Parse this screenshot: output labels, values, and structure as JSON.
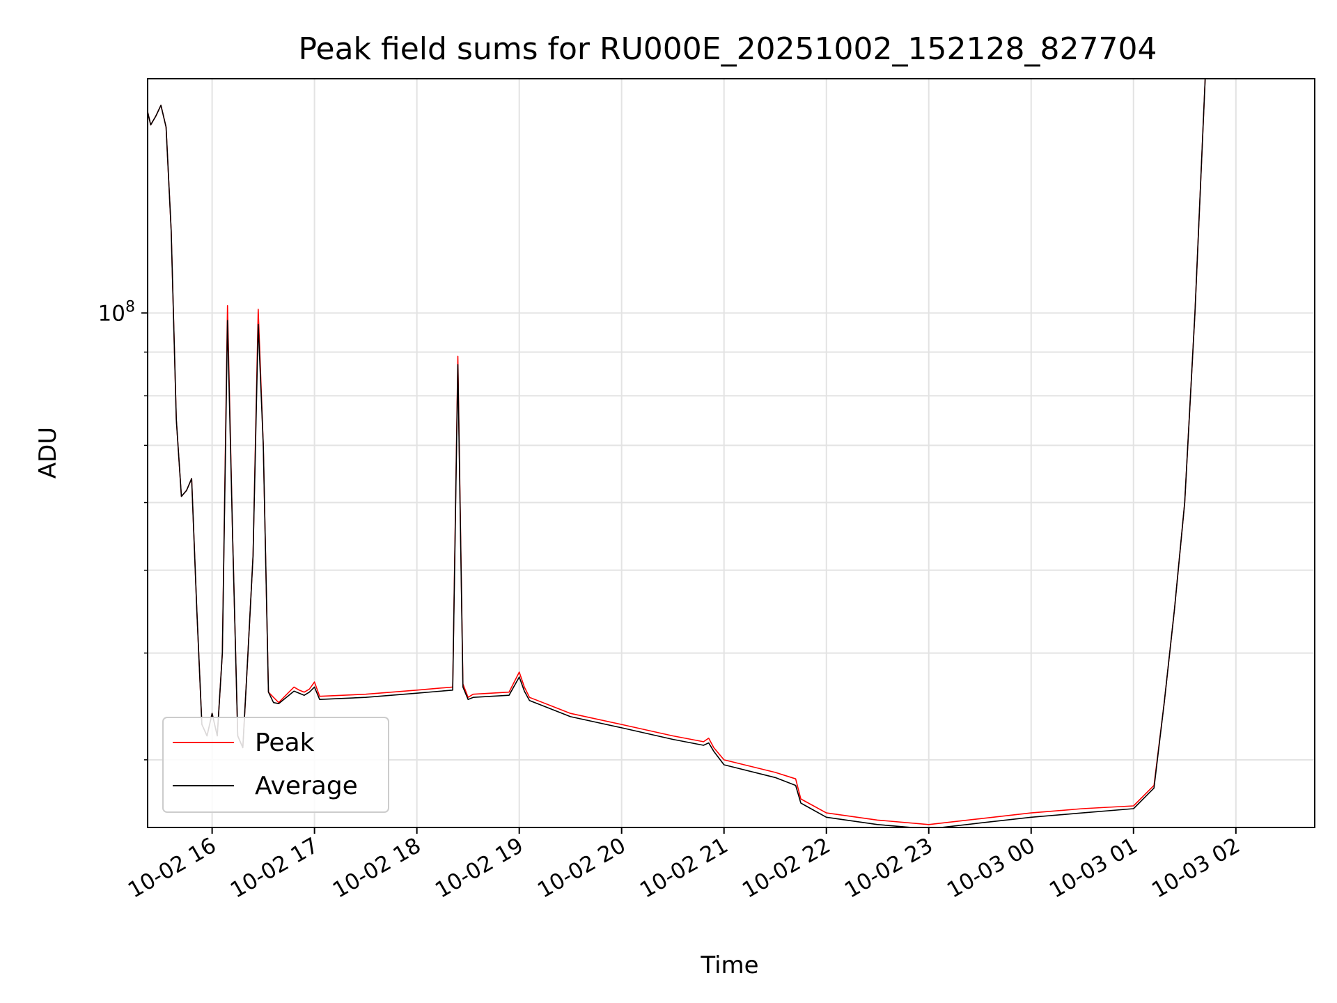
{
  "chart_data": {
    "type": "line",
    "title": "Peak field sums for RU000E_20251002_152128_827704",
    "xlabel": "Time",
    "ylabel": "ADU",
    "yscale": "log",
    "ylim": [
      25000000,
      188000000
    ],
    "y_major_ticks": [
      {
        "value": 100000000,
        "base": "10",
        "exp": "8"
      }
    ],
    "y_minor_ticks": [
      30000000,
      40000000,
      50000000,
      60000000,
      70000000,
      80000000,
      90000000
    ],
    "xlim_hours": [
      -0.63,
      10.77
    ],
    "x_ticks": [
      {
        "hour": 0,
        "label": "10-02 16"
      },
      {
        "hour": 1,
        "label": "10-02 17"
      },
      {
        "hour": 2,
        "label": "10-02 18"
      },
      {
        "hour": 3,
        "label": "10-02 19"
      },
      {
        "hour": 4,
        "label": "10-02 20"
      },
      {
        "hour": 5,
        "label": "10-02 21"
      },
      {
        "hour": 6,
        "label": "10-02 22"
      },
      {
        "hour": 7,
        "label": "10-02 23"
      },
      {
        "hour": 8,
        "label": "10-03 00"
      },
      {
        "hour": 9,
        "label": "10-03 01"
      },
      {
        "hour": 10,
        "label": "10-03 02"
      }
    ],
    "legend": {
      "position": "lower-left"
    },
    "series": [
      {
        "name": "Peak",
        "color": "#ff0000",
        "x": [
          -0.63,
          -0.6,
          -0.55,
          -0.5,
          -0.45,
          -0.4,
          -0.35,
          -0.3,
          -0.25,
          -0.2,
          -0.15,
          -0.1,
          -0.05,
          0.0,
          0.05,
          0.1,
          0.15,
          0.2,
          0.25,
          0.3,
          0.35,
          0.4,
          0.45,
          0.5,
          0.55,
          0.6,
          0.65,
          0.7,
          0.75,
          0.8,
          0.85,
          0.9,
          0.95,
          1.0,
          1.05,
          1.5,
          2.0,
          2.35,
          2.4,
          2.45,
          2.5,
          2.55,
          2.9,
          3.0,
          3.05,
          3.1,
          3.5,
          4.0,
          4.5,
          4.8,
          4.85,
          4.9,
          5.0,
          5.5,
          5.7,
          5.75,
          5.8,
          6.0,
          6.5,
          7.0,
          7.5,
          8.0,
          8.5,
          9.0,
          9.2,
          9.3,
          9.4,
          9.5,
          9.6,
          9.7
        ],
        "values": [
          172000000,
          166000000,
          170000000,
          175000000,
          165000000,
          125000000,
          75000000,
          61000000,
          62000000,
          64000000,
          45000000,
          33000000,
          32000000,
          34000000,
          32000000,
          40000000,
          102000000,
          55000000,
          32000000,
          31000000,
          40000000,
          52000000,
          101000000,
          70000000,
          36000000,
          35500000,
          35000000,
          35500000,
          36000000,
          36500000,
          36200000,
          36000000,
          36300000,
          37000000,
          35600000,
          35800000,
          36200000,
          36500000,
          89000000,
          36800000,
          35500000,
          35800000,
          36000000,
          38000000,
          36500000,
          35500000,
          34000000,
          33000000,
          32000000,
          31500000,
          31800000,
          31000000,
          30000000,
          29000000,
          28500000,
          27000000,
          26800000,
          26000000,
          25500000,
          25200000,
          25600000,
          26000000,
          26300000,
          26500000,
          28000000,
          35000000,
          45000000,
          60000000,
          100000000,
          188000000
        ]
      },
      {
        "name": "Average",
        "color": "#000000",
        "x": [
          -0.63,
          -0.6,
          -0.55,
          -0.5,
          -0.45,
          -0.4,
          -0.35,
          -0.3,
          -0.25,
          -0.2,
          -0.15,
          -0.1,
          -0.05,
          0.0,
          0.05,
          0.1,
          0.15,
          0.2,
          0.25,
          0.3,
          0.35,
          0.4,
          0.45,
          0.5,
          0.55,
          0.6,
          0.65,
          0.7,
          0.75,
          0.8,
          0.85,
          0.9,
          0.95,
          1.0,
          1.05,
          1.5,
          2.0,
          2.35,
          2.4,
          2.45,
          2.5,
          2.55,
          2.9,
          3.0,
          3.05,
          3.1,
          3.5,
          4.0,
          4.5,
          4.8,
          4.85,
          4.9,
          5.0,
          5.5,
          5.7,
          5.75,
          5.8,
          6.0,
          6.5,
          7.0,
          7.5,
          8.0,
          8.5,
          9.0,
          9.2,
          9.3,
          9.4,
          9.5,
          9.6,
          9.7
        ],
        "values": [
          172000000,
          166000000,
          170000000,
          175000000,
          165000000,
          125000000,
          75000000,
          61000000,
          62000000,
          64000000,
          45000000,
          33000000,
          32000000,
          34000000,
          32000000,
          40000000,
          98000000,
          55000000,
          32000000,
          31000000,
          40000000,
          52000000,
          97000000,
          70000000,
          36000000,
          35000000,
          34900000,
          35300000,
          35700000,
          36100000,
          35900000,
          35700000,
          36000000,
          36500000,
          35300000,
          35500000,
          35900000,
          36200000,
          87000000,
          36500000,
          35300000,
          35500000,
          35700000,
          37500000,
          36100000,
          35200000,
          33700000,
          32700000,
          31700000,
          31200000,
          31400000,
          30700000,
          29600000,
          28600000,
          28000000,
          26700000,
          26500000,
          25700000,
          25200000,
          24900000,
          25300000,
          25700000,
          26000000,
          26300000,
          27800000,
          35000000,
          45000000,
          60000000,
          100000000,
          188000000
        ]
      }
    ]
  }
}
